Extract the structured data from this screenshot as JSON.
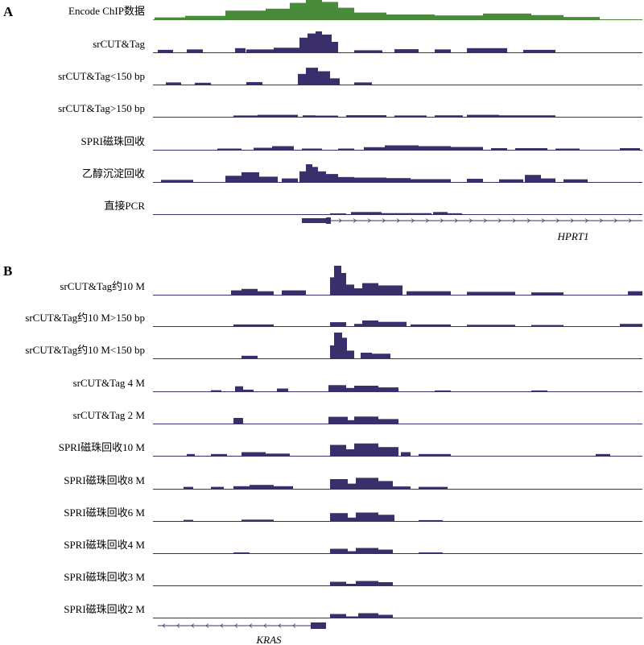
{
  "panels": [
    {
      "letter": "A",
      "tracks": [
        {
          "label": "Encode ChIP数据",
          "color": "#4a8b3b",
          "segments": [
            [
              192,
              230,
              0.1
            ],
            [
              230,
              280,
              0.18
            ],
            [
              280,
              330,
              0.45
            ],
            [
              330,
              360,
              0.55
            ],
            [
              360,
              380,
              0.85
            ],
            [
              380,
              400,
              1.0
            ],
            [
              400,
              420,
              0.9
            ],
            [
              420,
              440,
              0.6
            ],
            [
              440,
              480,
              0.35
            ],
            [
              480,
              540,
              0.25
            ],
            [
              540,
              600,
              0.2
            ],
            [
              600,
              660,
              0.3
            ],
            [
              660,
              700,
              0.22
            ],
            [
              700,
              745,
              0.12
            ]
          ]
        },
        {
          "label": "srCUT&Tag",
          "color": "#3a2f6b",
          "segments": [
            [
              196,
              215,
              0.12
            ],
            [
              232,
              252,
              0.14
            ],
            [
              292,
              305,
              0.2
            ],
            [
              306,
              340,
              0.14
            ],
            [
              340,
              372,
              0.22
            ],
            [
              372,
              382,
              0.7
            ],
            [
              382,
              392,
              0.9
            ],
            [
              392,
              400,
              1.0
            ],
            [
              400,
              412,
              0.85
            ],
            [
              412,
              420,
              0.5
            ],
            [
              440,
              475,
              0.1
            ],
            [
              490,
              520,
              0.15
            ],
            [
              540,
              560,
              0.14
            ],
            [
              580,
              630,
              0.2
            ],
            [
              650,
              690,
              0.12
            ]
          ]
        },
        {
          "label": "srCUT&Tag<150 bp",
          "color": "#3a2f6b",
          "segments": [
            [
              206,
              225,
              0.12
            ],
            [
              242,
              262,
              0.1
            ],
            [
              306,
              326,
              0.14
            ],
            [
              370,
              380,
              0.6
            ],
            [
              380,
              395,
              0.95
            ],
            [
              395,
              410,
              0.75
            ],
            [
              410,
              422,
              0.35
            ],
            [
              440,
              462,
              0.12
            ]
          ]
        },
        {
          "label": "srCUT&Tag>150 bp",
          "color": "#3a2f6b",
          "segments": [
            [
              290,
              320,
              0.2
            ],
            [
              320,
              370,
              0.3
            ],
            [
              376,
              392,
              0.22
            ],
            [
              392,
              420,
              0.18
            ],
            [
              430,
              480,
              0.24
            ],
            [
              490,
              530,
              0.2
            ],
            [
              540,
              575,
              0.22
            ],
            [
              580,
              620,
              0.3
            ],
            [
              620,
              690,
              0.22
            ]
          ]
        },
        {
          "label": "SPRI磁珠回收",
          "color": "#3a2f6b",
          "segments": [
            [
              270,
              300,
              0.15
            ],
            [
              315,
              338,
              0.25
            ],
            [
              338,
              365,
              0.45
            ],
            [
              375,
              400,
              0.15
            ],
            [
              420,
              440,
              0.15
            ],
            [
              452,
              478,
              0.32
            ],
            [
              478,
              520,
              0.55
            ],
            [
              520,
              560,
              0.45
            ],
            [
              560,
              600,
              0.35
            ],
            [
              610,
              630,
              0.2
            ],
            [
              640,
              680,
              0.2
            ],
            [
              690,
              720,
              0.15
            ],
            [
              770,
              795,
              0.2
            ]
          ]
        },
        {
          "label": "乙醇沉淀回收",
          "color": "#3a2f6b",
          "segments": [
            [
              200,
              240,
              0.12
            ],
            [
              280,
              300,
              0.35
            ],
            [
              300,
              322,
              0.55
            ],
            [
              322,
              345,
              0.3
            ],
            [
              350,
              370,
              0.2
            ],
            [
              372,
              380,
              0.6
            ],
            [
              380,
              388,
              1.0
            ],
            [
              388,
              395,
              0.85
            ],
            [
              395,
              405,
              0.6
            ],
            [
              405,
              420,
              0.45
            ],
            [
              420,
              440,
              0.28
            ],
            [
              440,
              480,
              0.25
            ],
            [
              480,
              510,
              0.22
            ],
            [
              510,
              560,
              0.16
            ],
            [
              580,
              600,
              0.18
            ],
            [
              620,
              650,
              0.15
            ],
            [
              652,
              672,
              0.4
            ],
            [
              672,
              690,
              0.2
            ],
            [
              700,
              730,
              0.15
            ]
          ]
        },
        {
          "label": "直接PCR",
          "color": "#3a2f6b",
          "segments": [
            [
              410,
              430,
              0.08
            ],
            [
              436,
              474,
              0.45
            ],
            [
              474,
              536,
              0.22
            ],
            [
              538,
              556,
              0.45
            ],
            [
              556,
              574,
              0.2
            ]
          ]
        }
      ],
      "gene": {
        "name": "HPRT1",
        "direction": "right",
        "exon_start": 375,
        "exon_end": 411,
        "line_end": 798
      }
    },
    {
      "letter": "B",
      "tracks": [
        {
          "label": "srCUT&Tag约10 M",
          "color": "#3a2f6b",
          "segments": [
            [
              287,
              300,
              0.15
            ],
            [
              300,
              320,
              0.2
            ],
            [
              320,
              340,
              0.12
            ],
            [
              350,
              380,
              0.15
            ],
            [
              410,
              415,
              0.6
            ],
            [
              415,
              424,
              1.0
            ],
            [
              424,
              430,
              0.75
            ],
            [
              430,
              440,
              0.35
            ],
            [
              440,
              450,
              0.22
            ],
            [
              450,
              470,
              0.4
            ],
            [
              470,
              500,
              0.32
            ],
            [
              505,
              560,
              0.12
            ],
            [
              580,
              640,
              0.1
            ],
            [
              660,
              700,
              0.08
            ],
            [
              780,
              798,
              0.12
            ]
          ]
        },
        {
          "label": "srCUT&Tag约10 M>150 bp",
          "color": "#3a2f6b",
          "segments": [
            [
              290,
              340,
              0.15
            ],
            [
              410,
              430,
              0.35
            ],
            [
              440,
              450,
              0.2
            ],
            [
              450,
              470,
              0.5
            ],
            [
              470,
              505,
              0.38
            ],
            [
              510,
              560,
              0.15
            ],
            [
              580,
              640,
              0.12
            ],
            [
              660,
              700,
              0.1
            ],
            [
              770,
              798,
              0.2
            ]
          ]
        },
        {
          "label": "srCUT&Tag约10 M<150 bp",
          "color": "#3a2f6b",
          "segments": [
            [
              300,
              320,
              0.1
            ],
            [
              410,
              415,
              0.5
            ],
            [
              415,
              425,
              1.0
            ],
            [
              425,
              431,
              0.8
            ],
            [
              431,
              440,
              0.3
            ],
            [
              448,
              462,
              0.22
            ],
            [
              462,
              485,
              0.18
            ]
          ]
        },
        {
          "label": "srCUT&Tag 4 M",
          "color": "#3a2f6b",
          "segments": [
            [
              262,
              275,
              0.1
            ],
            [
              292,
              302,
              0.45
            ],
            [
              302,
              315,
              0.15
            ],
            [
              344,
              358,
              0.25
            ],
            [
              408,
              430,
              0.55
            ],
            [
              430,
              440,
              0.3
            ],
            [
              440,
              470,
              0.5
            ],
            [
              470,
              495,
              0.35
            ],
            [
              540,
              560,
              0.08
            ],
            [
              660,
              680,
              0.08
            ]
          ]
        },
        {
          "label": "srCUT&Tag 2 M",
          "color": "#3a2f6b",
          "segments": [
            [
              290,
              302,
              0.5
            ],
            [
              408,
              432,
              0.6
            ],
            [
              432,
              440,
              0.3
            ],
            [
              440,
              470,
              0.62
            ],
            [
              470,
              495,
              0.4
            ]
          ]
        },
        {
          "label": "SPRI磁珠回收10 M",
          "color": "#3a2f6b",
          "segments": [
            [
              232,
              242,
              0.12
            ],
            [
              262,
              282,
              0.12
            ],
            [
              300,
              330,
              0.25
            ],
            [
              330,
              360,
              0.15
            ],
            [
              410,
              430,
              0.75
            ],
            [
              430,
              440,
              0.45
            ],
            [
              440,
              470,
              0.85
            ],
            [
              470,
              495,
              0.6
            ],
            [
              498,
              510,
              0.25
            ],
            [
              520,
              560,
              0.12
            ],
            [
              740,
              758,
              0.12
            ]
          ]
        },
        {
          "label": "SPRI磁珠回收8 M",
          "color": "#3a2f6b",
          "segments": [
            [
              228,
              240,
              0.15
            ],
            [
              262,
              278,
              0.15
            ],
            [
              290,
              310,
              0.2
            ],
            [
              310,
              340,
              0.3
            ],
            [
              340,
              364,
              0.2
            ],
            [
              410,
              432,
              0.75
            ],
            [
              432,
              442,
              0.4
            ],
            [
              442,
              470,
              0.85
            ],
            [
              470,
              488,
              0.6
            ],
            [
              488,
              510,
              0.18
            ],
            [
              520,
              556,
              0.15
            ]
          ]
        },
        {
          "label": "SPRI磁珠回收6 M",
          "color": "#3a2f6b",
          "segments": [
            [
              228,
              240,
              0.1
            ],
            [
              300,
              340,
              0.12
            ],
            [
              410,
              432,
              0.7
            ],
            [
              432,
              442,
              0.3
            ],
            [
              442,
              470,
              0.75
            ],
            [
              470,
              490,
              0.55
            ],
            [
              520,
              550,
              0.08
            ]
          ]
        },
        {
          "label": "SPRI磁珠回收4 M",
          "color": "#3a2f6b",
          "segments": [
            [
              290,
              310,
              0.08
            ],
            [
              410,
              432,
              0.55
            ],
            [
              432,
              442,
              0.25
            ],
            [
              442,
              470,
              0.65
            ],
            [
              470,
              488,
              0.45
            ],
            [
              520,
              550,
              0.06
            ]
          ]
        },
        {
          "label": "SPRI磁珠回收3 M",
          "color": "#3a2f6b",
          "segments": [
            [
              410,
              430,
              0.45
            ],
            [
              430,
              442,
              0.2
            ],
            [
              442,
              470,
              0.55
            ],
            [
              470,
              488,
              0.4
            ]
          ]
        },
        {
          "label": "SPRI磁珠回收2 M",
          "color": "#3a2f6b",
          "segments": [
            [
              410,
              430,
              0.45
            ],
            [
              430,
              445,
              0.15
            ],
            [
              445,
              470,
              0.55
            ],
            [
              470,
              488,
              0.35
            ]
          ]
        }
      ],
      "gene": {
        "name": "KRAS",
        "direction": "left",
        "exon_start": 386,
        "exon_end": 405,
        "line_start": 196
      }
    }
  ]
}
